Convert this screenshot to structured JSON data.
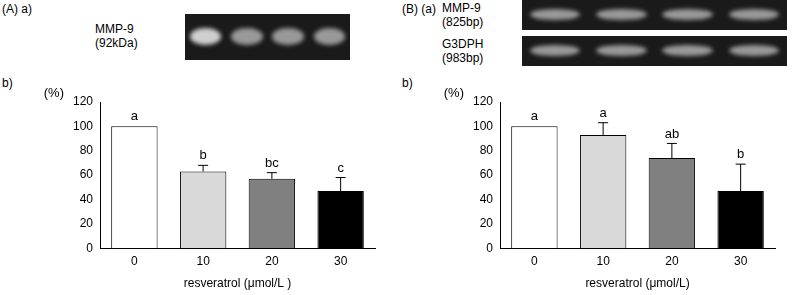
{
  "panels": [
    {
      "label": "(A)",
      "gel": {
        "label": "a)",
        "rows": [
          {
            "name": "MMP-9",
            "size": "(92kDa)"
          }
        ]
      }
    },
    {
      "label": "(B)",
      "gel": {
        "label": "(a)",
        "rows": [
          {
            "name": "MMP-9",
            "size": "(825bp)"
          },
          {
            "name": "G3DPH",
            "size": "(983bp)"
          }
        ]
      }
    }
  ],
  "chart_data": [
    {
      "type": "bar",
      "title": "b)",
      "y_label": "(%)",
      "x_label": "resveratrol (μmol/L )",
      "categories": [
        "0",
        "10",
        "20",
        "30"
      ],
      "values": [
        100,
        63,
        57,
        47
      ],
      "errors": [
        0,
        5,
        5,
        11
      ],
      "annotations": [
        "a",
        "b",
        "bc",
        "c"
      ],
      "colors": [
        "#ffffff",
        "#d9d9d9",
        "#808080",
        "#000000"
      ],
      "ylim": [
        0,
        120
      ],
      "yticks": [
        0,
        20,
        40,
        60,
        80,
        100,
        120
      ],
      "grid": false
    },
    {
      "type": "bar",
      "title": "b)",
      "y_label": "(%)",
      "x_label": "resveratrol (μmol/L)",
      "categories": [
        "0",
        "10",
        "20",
        "30"
      ],
      "values": [
        100,
        93,
        74,
        47
      ],
      "errors": [
        0,
        10,
        12,
        22
      ],
      "annotations": [
        "a",
        "a",
        "ab",
        "b"
      ],
      "colors": [
        "#ffffff",
        "#d9d9d9",
        "#808080",
        "#000000"
      ],
      "ylim": [
        0,
        120
      ],
      "yticks": [
        0,
        20,
        40,
        60,
        80,
        100,
        120
      ],
      "grid": false
    }
  ]
}
